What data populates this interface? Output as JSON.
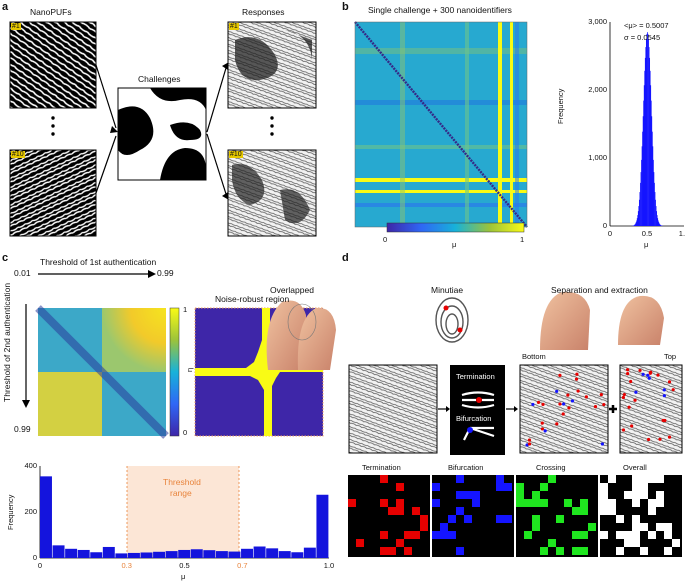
{
  "panels": {
    "a": "a",
    "b": "b",
    "c": "c",
    "d": "d"
  },
  "panel_a": {
    "nanopufs": "NanoPUFs",
    "challenges": "Challenges",
    "responses": "Responses",
    "tag1": "#1",
    "tag10": "#10"
  },
  "panel_b": {
    "title": "Single challenge + 300 nanoidentifiers",
    "colorbar_min": "0",
    "colorbar_max": "1",
    "colorbar_label": "μ",
    "stats_mean": "<μ> = 0.5007",
    "stats_sigma": "σ =  0.0545",
    "hist_ylabel": "Frequency",
    "hist_xlabel": "μ"
  },
  "panel_c": {
    "x_arrow_left": "0.01",
    "x_arrow_right": "0.99",
    "y_bottom": "0.99",
    "title_top": "Threshold of 1st authentication",
    "ylabel": "Threshold of 2nd authentication",
    "noise_title": "Noise-robust region",
    "cbar_label": "η",
    "cbar_1": "1",
    "cbar_0": "0",
    "threshold_label_1": "Threshold",
    "threshold_label_2": "range"
  },
  "panel_d": {
    "overlapped": "Overlapped",
    "minutiae": "Minutiae",
    "separation": "Separation and extraction",
    "termination_box": "Termination",
    "bifurcation_box": "Bifurcation",
    "bottom": "Bottom",
    "top": "Top",
    "termination": "Termination",
    "bifurcation": "Bifurcation",
    "crossing": "Crossing",
    "overall": "Overall"
  },
  "colors": {
    "termination": "#e60000",
    "bifurcation": "#1414ff",
    "crossing": "#1fe61f",
    "overall": "#ffffff",
    "highlight": "#ff8c00"
  },
  "chart_data": [
    {
      "type": "heatmap",
      "title": "Single challenge + 300 nanoidentifiers",
      "colorbar_range": [
        0,
        1
      ],
      "colorbar_label": "μ"
    },
    {
      "type": "bar",
      "xlabel": "μ",
      "ylabel": "Frequency",
      "xlim": [
        0,
        1
      ],
      "ylim": [
        0,
        3000
      ],
      "xticks": [
        "0",
        "0.5",
        "1.0"
      ],
      "yticks": [
        "0",
        "1,000",
        "2,000",
        "3,000"
      ],
      "mean": 0.5007,
      "sigma": 0.0545,
      "peak": 2850
    },
    {
      "type": "bar",
      "xlabel": "μ",
      "ylabel": "Frequency",
      "xlim": [
        0,
        1
      ],
      "ylim": [
        0,
        400
      ],
      "xticks": [
        "0",
        "0.3",
        "0.5",
        "0.7",
        "1.0"
      ],
      "yticks": [
        "0",
        "200",
        "400"
      ],
      "threshold_range": [
        0.3,
        0.7
      ],
      "values": [
        355,
        55,
        40,
        35,
        25,
        48,
        20,
        22,
        24,
        27,
        30,
        35,
        38,
        34,
        30,
        28,
        40,
        50,
        42,
        30,
        25,
        45,
        275
      ]
    }
  ]
}
